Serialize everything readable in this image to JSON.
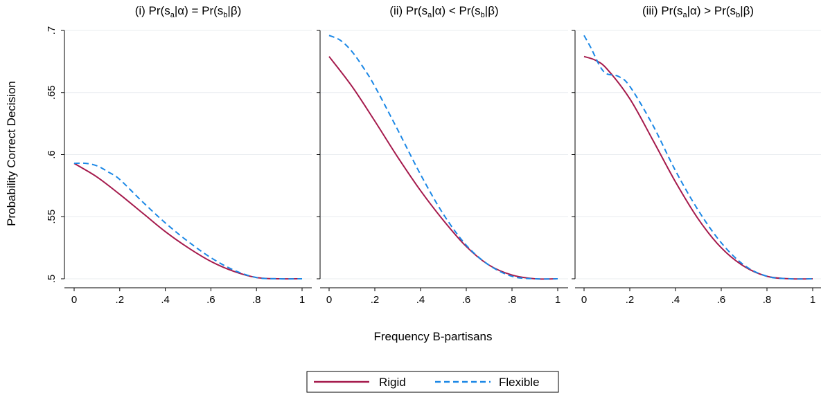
{
  "chart_data": {
    "type": "line",
    "ylabel": "Probability Correct Decision",
    "xlabel": "Frequency B-partisans",
    "ylim": [
      0.5,
      0.7
    ],
    "xlim": [
      0,
      1
    ],
    "yticks": [
      ".5",
      ".55",
      ".6",
      ".65",
      ".7"
    ],
    "ytick_values": [
      0.5,
      0.55,
      0.6,
      0.65,
      0.7
    ],
    "xticks": [
      "0",
      ".2",
      ".4",
      ".6",
      ".8",
      "1"
    ],
    "xtick_values": [
      0,
      0.2,
      0.4,
      0.6,
      0.8,
      1
    ],
    "grid": "horizontal",
    "legend": {
      "position": "bottom-center",
      "entries": [
        {
          "name": "Rigid",
          "color": "#a51a4c",
          "style": "solid"
        },
        {
          "name": "Flexible",
          "color": "#1a87e6",
          "style": "dashed"
        }
      ]
    },
    "panels": [
      {
        "title": "(i) Pr(sₐ|α) = Pr(sᵦ|β)",
        "title_parts": {
          "open": "(i) Pr(s",
          "sub1": "a",
          "mid": "|α) = Pr(s",
          "sub2": "b",
          "close": "|β)"
        },
        "series": [
          {
            "name": "Rigid",
            "x": [
              0,
              0.1,
              0.2,
              0.3,
              0.4,
              0.5,
              0.6,
              0.7,
              0.8,
              0.9,
              1.0
            ],
            "values": [
              0.593,
              0.582,
              0.568,
              0.553,
              0.538,
              0.525,
              0.514,
              0.506,
              0.501,
              0.5,
              0.5
            ]
          },
          {
            "name": "Flexible",
            "x": [
              0,
              0.05,
              0.1,
              0.15,
              0.2,
              0.3,
              0.4,
              0.5,
              0.6,
              0.7,
              0.8,
              0.9,
              1.0
            ],
            "values": [
              0.593,
              0.593,
              0.591,
              0.586,
              0.58,
              0.562,
              0.545,
              0.53,
              0.517,
              0.507,
              0.501,
              0.5,
              0.5
            ]
          }
        ]
      },
      {
        "title": "(ii) Pr(sₐ|α) < Pr(sᵦ|β)",
        "title_parts": {
          "open": "(ii) Pr(s",
          "sub1": "a",
          "mid": "|α) < Pr(s",
          "sub2": "b",
          "close": "|β)"
        },
        "series": [
          {
            "name": "Rigid",
            "x": [
              0,
              0.1,
              0.2,
              0.3,
              0.4,
              0.5,
              0.6,
              0.7,
              0.8,
              0.9,
              1.0
            ],
            "values": [
              0.679,
              0.655,
              0.627,
              0.598,
              0.571,
              0.547,
              0.526,
              0.511,
              0.503,
              0.5,
              0.5
            ]
          },
          {
            "name": "Flexible",
            "x": [
              0,
              0.05,
              0.1,
              0.15,
              0.2,
              0.3,
              0.4,
              0.5,
              0.6,
              0.7,
              0.8,
              0.9,
              1.0
            ],
            "values": [
              0.696,
              0.692,
              0.683,
              0.67,
              0.655,
              0.62,
              0.584,
              0.552,
              0.527,
              0.511,
              0.502,
              0.5,
              0.5
            ]
          }
        ]
      },
      {
        "title": "(iii) Pr(sₐ|α) > Pr(sᵦ|β)",
        "title_parts": {
          "open": "(iii) Pr(s",
          "sub1": "a",
          "mid": "|α) > Pr(s",
          "sub2": "b",
          "close": "|β)"
        },
        "series": [
          {
            "name": "Rigid",
            "x": [
              0,
              0.05,
              0.1,
              0.2,
              0.3,
              0.4,
              0.5,
              0.6,
              0.7,
              0.8,
              0.9,
              1.0
            ],
            "values": [
              0.679,
              0.676,
              0.669,
              0.645,
              0.612,
              0.578,
              0.548,
              0.525,
              0.51,
              0.502,
              0.5,
              0.5
            ]
          },
          {
            "name": "Flexible",
            "x": [
              0,
              0.03,
              0.07,
              0.1,
              0.15,
              0.2,
              0.3,
              0.4,
              0.5,
              0.6,
              0.7,
              0.8,
              0.9,
              1.0
            ],
            "values": [
              0.696,
              0.686,
              0.671,
              0.665,
              0.663,
              0.655,
              0.624,
              0.587,
              0.555,
              0.529,
              0.511,
              0.502,
              0.5,
              0.5
            ]
          }
        ]
      }
    ]
  }
}
